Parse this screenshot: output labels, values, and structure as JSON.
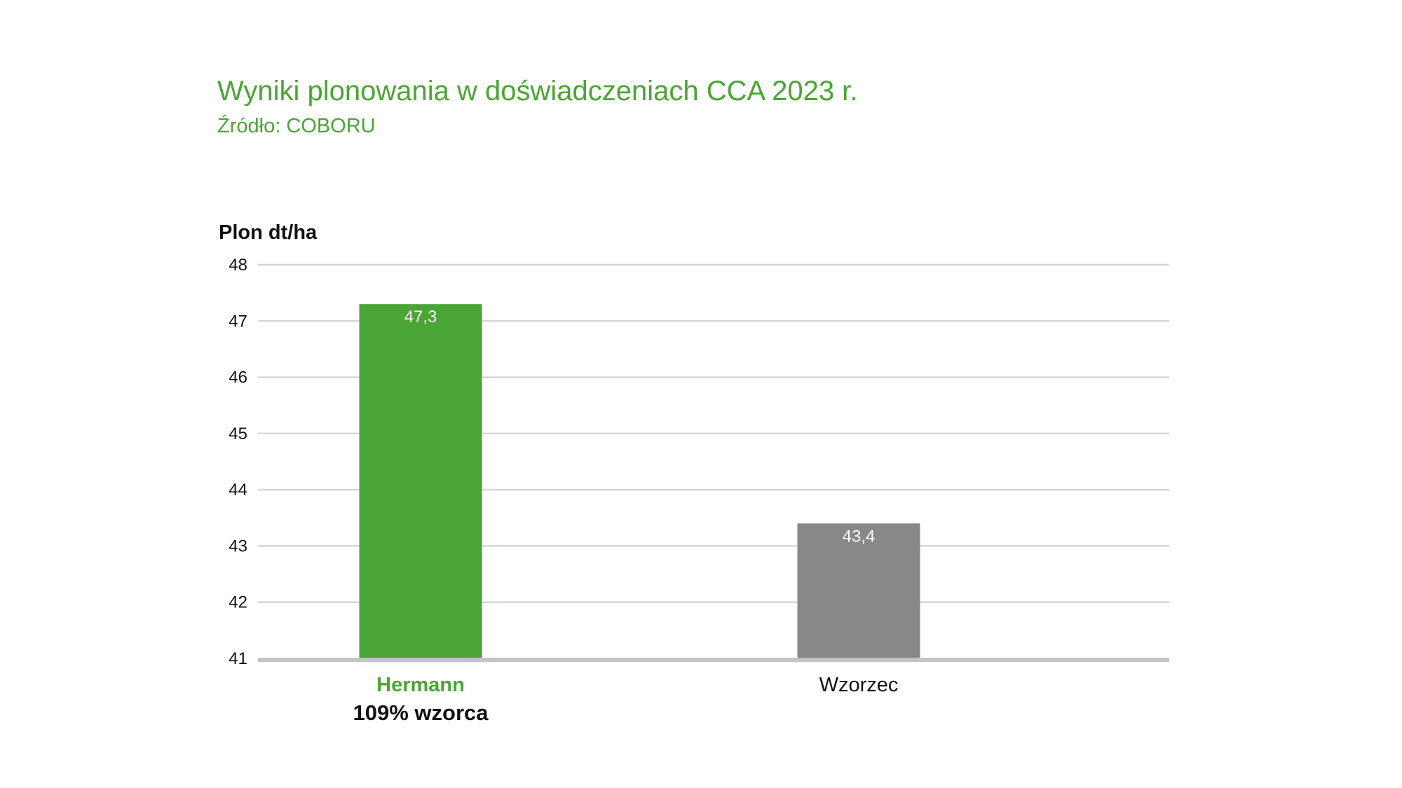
{
  "chart_data": {
    "type": "bar",
    "title": "Wyniki plonowania w doświadczeniach CCA 2023 r.",
    "subtitle": "Źródło: COBORU",
    "ylabel": "Plon dt/ha",
    "xlabel": "",
    "ylim": [
      41,
      48
    ],
    "yticks": [
      "41",
      "42",
      "43",
      "44",
      "45",
      "46",
      "47",
      "48"
    ],
    "grid": true,
    "categories": [
      "Hermann",
      "Wzorzec"
    ],
    "category_note": "109% wzorca",
    "values": [
      47.3,
      43.4
    ],
    "value_labels": [
      "47,3",
      "43,4"
    ],
    "colors": [
      "#4aa535",
      "#888888"
    ],
    "label_colors": [
      "#4aa535",
      "#111111"
    ]
  }
}
